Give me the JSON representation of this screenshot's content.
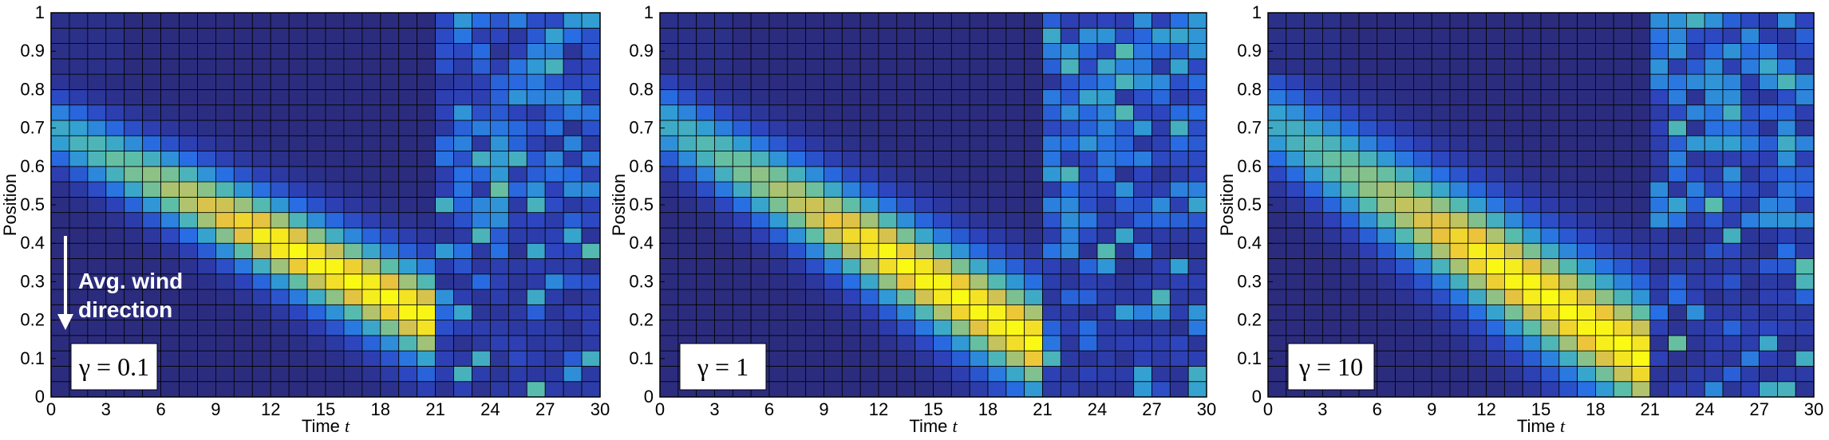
{
  "colors": {
    "background": "#ffffff",
    "grid": "#000000",
    "arrow": "#ffffff"
  },
  "chart_data": [
    {
      "type": "heatmap",
      "xlabel": "Time",
      "xlabel_italic": "t",
      "ylabel": "Position",
      "xlim": [
        0,
        30
      ],
      "ylim": [
        0,
        1
      ],
      "xticks": [
        "0",
        "3",
        "6",
        "9",
        "12",
        "15",
        "18",
        "21",
        "24",
        "27",
        "30"
      ],
      "yticks": [
        "0",
        "0.1",
        "0.2",
        "0.3",
        "0.4",
        "0.5",
        "0.6",
        "0.7",
        "0.8",
        "0.9",
        "1"
      ],
      "annotation": "γ = 0.1",
      "wind_label_line1": "Avg. wind",
      "wind_label_line2": "direction",
      "ridge": {
        "t_start": 0,
        "pos_start": 0.7,
        "slope": -0.024,
        "width": 0.09
      }
    },
    {
      "type": "heatmap",
      "xlabel": "Time",
      "xlabel_italic": "t",
      "ylabel": "Position",
      "xlim": [
        0,
        30
      ],
      "ylim": [
        0,
        1
      ],
      "xticks": [
        "0",
        "3",
        "6",
        "9",
        "12",
        "15",
        "18",
        "21",
        "24",
        "27",
        "30"
      ],
      "yticks": [
        "0",
        "0.1",
        "0.2",
        "0.3",
        "0.4",
        "0.5",
        "0.6",
        "0.7",
        "0.8",
        "0.9",
        "1"
      ],
      "annotation": "γ = 1",
      "ridge": {
        "t_start": 0,
        "pos_start": 0.72,
        "slope": -0.028,
        "width": 0.1
      }
    },
    {
      "type": "heatmap",
      "xlabel": "Time",
      "xlabel_italic": "t",
      "ylabel": "Position",
      "xlim": [
        0,
        30
      ],
      "ylim": [
        0,
        1
      ],
      "xticks": [
        "0",
        "3",
        "6",
        "9",
        "12",
        "15",
        "18",
        "21",
        "24",
        "27",
        "30"
      ],
      "yticks": [
        "0",
        "0.1",
        "0.2",
        "0.3",
        "0.4",
        "0.5",
        "0.6",
        "0.7",
        "0.8",
        "0.9",
        "1"
      ],
      "annotation": "γ = 10",
      "ridge": {
        "t_start": 0,
        "pos_start": 0.72,
        "slope": -0.03,
        "width": 0.12
      }
    }
  ]
}
